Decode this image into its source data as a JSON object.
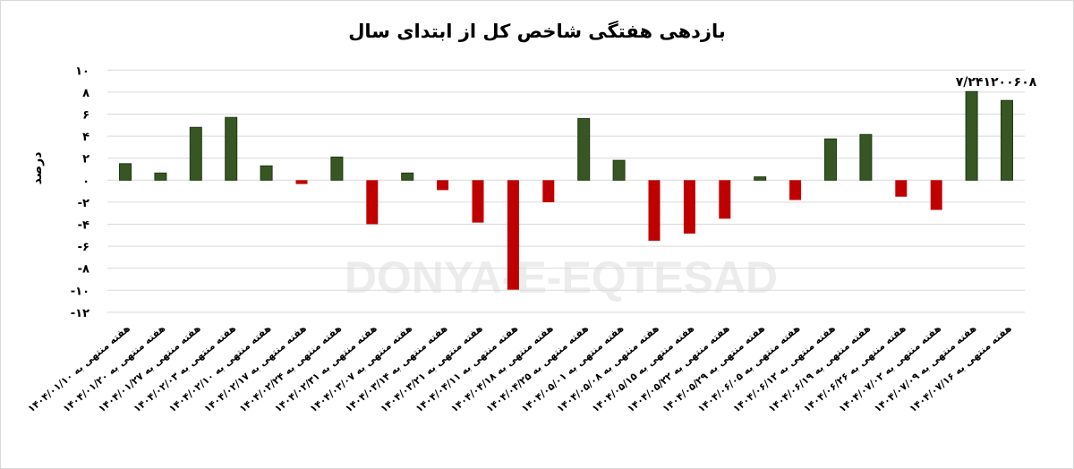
{
  "chart_data": {
    "type": "bar",
    "title": "بازدهی هفتگی شاخص کل از ابتدای سال",
    "ylabel": "درصد",
    "xlabel": "",
    "ylim": [
      -12,
      10
    ],
    "yticks": [
      10,
      8,
      6,
      4,
      2,
      0,
      -2,
      -4,
      -6,
      -8,
      -10,
      -12
    ],
    "ytick_labels": [
      "۱۰",
      "۸",
      "۶",
      "۴",
      "۲",
      "۰",
      "-۲",
      "-۴",
      "-۶",
      "-۸",
      "-۱۰",
      "-۱۲"
    ],
    "grid": true,
    "colors": {
      "positive": "#375623",
      "negative": "#c00000"
    },
    "watermark": "DONYA-E-EQTESAD",
    "categories": [
      "هفته منتهی به ۱۴۰۴/۰۱/۱۰",
      "هفته منتهی به ۱۴۰۴/۰۱/۲۰",
      "هفته منتهی به ۱۴۰۴/۰۱/۲۷",
      "هفته منتهی به ۱۴۰۴/۰۲/۰۳",
      "هفته منتهی به ۱۴۰۴/۰۲/۱۰",
      "هفته منتهی به ۱۴۰۴/۰۲/۱۷",
      "هفته منتهی به ۱۴۰۴/۰۲/۲۴",
      "هفته منتهی به ۱۴۰۴/۰۲/۳۱",
      "هفته منتهی به ۱۴۰۴/۰۳/۰۷",
      "هفته منتهی به ۱۴۰۴/۰۳/۱۴",
      "هفته منتهی به ۱۴۰۴/۰۳/۲۱",
      "هفته منتهی به ۱۴۰۴/۰۴/۱۱",
      "هفته منتهی به ۱۴۰۴/۰۴/۱۸",
      "هفته منتهی به ۱۴۰۴/۰۴/۲۵",
      "هفته منتهی به ۱۴۰۴/۰۵/۰۱",
      "هفته منتهی به ۱۴۰۴/۰۵/۰۸",
      "هفته منتهی به ۱۴۰۴/۰۵/۱۵",
      "هفته منتهی به ۱۴۰۴/۰۵/۲۲",
      "هفته منتهی به ۱۴۰۴/۰۵/۲۹",
      "هفته منتهی به ۱۴۰۴/۰۶/۰۵",
      "هفته منتهی به ۱۴۰۴/۰۶/۱۲",
      "هفته منتهی به ۱۴۰۴/۰۶/۱۹",
      "هفته منتهی به ۱۴۰۴/۰۶/۲۶",
      "هفته منتهی به ۱۴۰۴/۰۷/۰۲",
      "هفته منتهی به ۱۴۰۴/۰۷/۰۹",
      "هفته منتهی به ۱۴۰۴/۰۷/۱۶"
    ],
    "values": [
      1.5,
      0.65,
      4.8,
      5.7,
      1.3,
      -0.35,
      2.1,
      -4.0,
      0.65,
      -0.9,
      -3.85,
      -9.95,
      -2.0,
      5.6,
      1.8,
      -5.5,
      -4.85,
      -3.5,
      0.3,
      -1.8,
      3.75,
      4.15,
      -1.5,
      -2.7,
      8.05,
      7.241200608
    ],
    "data_labels": [
      {
        "index": 25,
        "text": "۷/۲۴۱۲۰۰۶۰۸"
      }
    ]
  }
}
